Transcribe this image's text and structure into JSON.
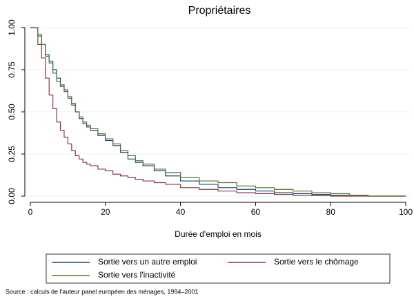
{
  "chart_data": {
    "type": "step",
    "title": "Propriétaires",
    "xlabel": "Durée d'emploi en mois",
    "source": "Source : calculs de l'auteur panel européen des ménages, 1994–2001",
    "x": [
      0,
      1,
      2,
      3,
      4,
      5,
      6,
      7,
      8,
      9,
      10,
      11,
      12,
      13,
      14,
      15,
      16,
      18,
      20,
      22,
      24,
      26,
      28,
      30,
      33,
      36,
      40,
      45,
      50,
      55,
      60,
      65,
      70,
      75,
      80,
      85,
      90,
      100
    ],
    "series": [
      {
        "name": "Sortie vers un autre emploi",
        "color": "#1a476f",
        "values": [
          1,
          1,
          0.95,
          0.9,
          0.84,
          0.8,
          0.75,
          0.7,
          0.66,
          0.63,
          0.59,
          0.55,
          0.5,
          0.46,
          0.43,
          0.41,
          0.39,
          0.36,
          0.33,
          0.3,
          0.26,
          0.22,
          0.2,
          0.18,
          0.15,
          0.12,
          0.09,
          0.07,
          0.05,
          0.04,
          0.03,
          0.02,
          0.015,
          0.01,
          0.005,
          0.003,
          0,
          0
        ]
      },
      {
        "name": "Sortie vers le chômage",
        "color": "#90353b",
        "values": [
          1,
          1,
          0.9,
          0.82,
          0.7,
          0.6,
          0.52,
          0.44,
          0.39,
          0.35,
          0.31,
          0.27,
          0.24,
          0.22,
          0.2,
          0.19,
          0.18,
          0.16,
          0.15,
          0.13,
          0.12,
          0.11,
          0.1,
          0.09,
          0.08,
          0.07,
          0.05,
          0.04,
          0.03,
          0.02,
          0.015,
          0.01,
          0.005,
          0.003,
          0,
          0,
          0,
          0
        ]
      },
      {
        "name": "Sortie vers l'inactivité",
        "color": "#55752f",
        "values": [
          1,
          1,
          0.96,
          0.9,
          0.83,
          0.79,
          0.73,
          0.68,
          0.65,
          0.62,
          0.58,
          0.54,
          0.5,
          0.47,
          0.44,
          0.42,
          0.4,
          0.37,
          0.34,
          0.31,
          0.27,
          0.24,
          0.21,
          0.19,
          0.16,
          0.14,
          0.11,
          0.09,
          0.08,
          0.06,
          0.05,
          0.04,
          0.03,
          0.02,
          0.015,
          0.005,
          0,
          0
        ]
      }
    ],
    "xlim": [
      0,
      100
    ],
    "xticks": [
      0,
      20,
      40,
      60,
      80,
      100
    ],
    "ylim": [
      0,
      1
    ],
    "yticks": [
      {
        "value": 0,
        "label": "0.00"
      },
      {
        "value": 0.25,
        "label": "0.25"
      },
      {
        "value": 0.5,
        "label": "0.50"
      },
      {
        "value": 0.75,
        "label": "0.75"
      },
      {
        "value": 1,
        "label": "1.00"
      }
    ],
    "grid": true
  }
}
